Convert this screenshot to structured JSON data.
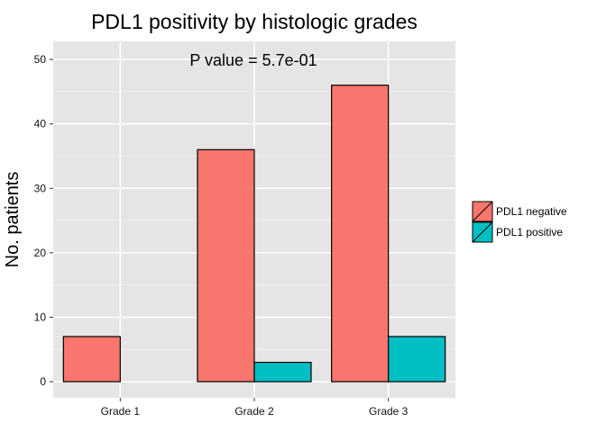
{
  "chart_data": {
    "type": "bar",
    "title": "PDL1 positivity by histologic grades",
    "annotation": "P value = 5.7e-01",
    "xlabel": "",
    "ylabel": "No. patients",
    "categories": [
      "Grade 1",
      "Grade 2",
      "Grade 3"
    ],
    "series": [
      {
        "name": "PDL1 negative",
        "values": [
          7,
          36,
          46
        ],
        "color": "#F8766D"
      },
      {
        "name": "PDL1 positive",
        "values": [
          0,
          3,
          7
        ],
        "color": "#00BFC4"
      }
    ],
    "ylim": [
      -2.5,
      52.8
    ],
    "yticks": [
      0,
      10,
      20,
      30,
      40,
      50
    ],
    "grid": true,
    "legend_position": "right",
    "panel_color": "#E5E5E5",
    "grid_color": "#FFFFFF"
  }
}
